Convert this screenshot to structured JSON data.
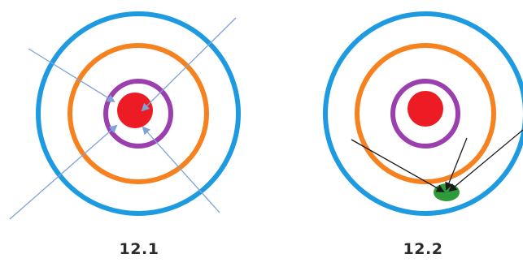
{
  "figures": [
    {
      "caption": "12.1",
      "rings": [
        {
          "name": "outer",
          "color": "#1e9be0"
        },
        {
          "name": "middle",
          "color": "#f5821f"
        },
        {
          "name": "inner",
          "color": "#9b3fae"
        }
      ],
      "core_color": "#ed1c24",
      "arrow_color": "#7fa3d6"
    },
    {
      "caption": "12.2",
      "rings": [
        {
          "name": "outer",
          "color": "#1e9be0"
        },
        {
          "name": "middle",
          "color": "#f5821f"
        },
        {
          "name": "inner",
          "color": "#9b3fae"
        }
      ],
      "core_color": "#ed1c24",
      "target_color": "#2e9a3a",
      "arrow_color": "#1a1a1a"
    }
  ]
}
